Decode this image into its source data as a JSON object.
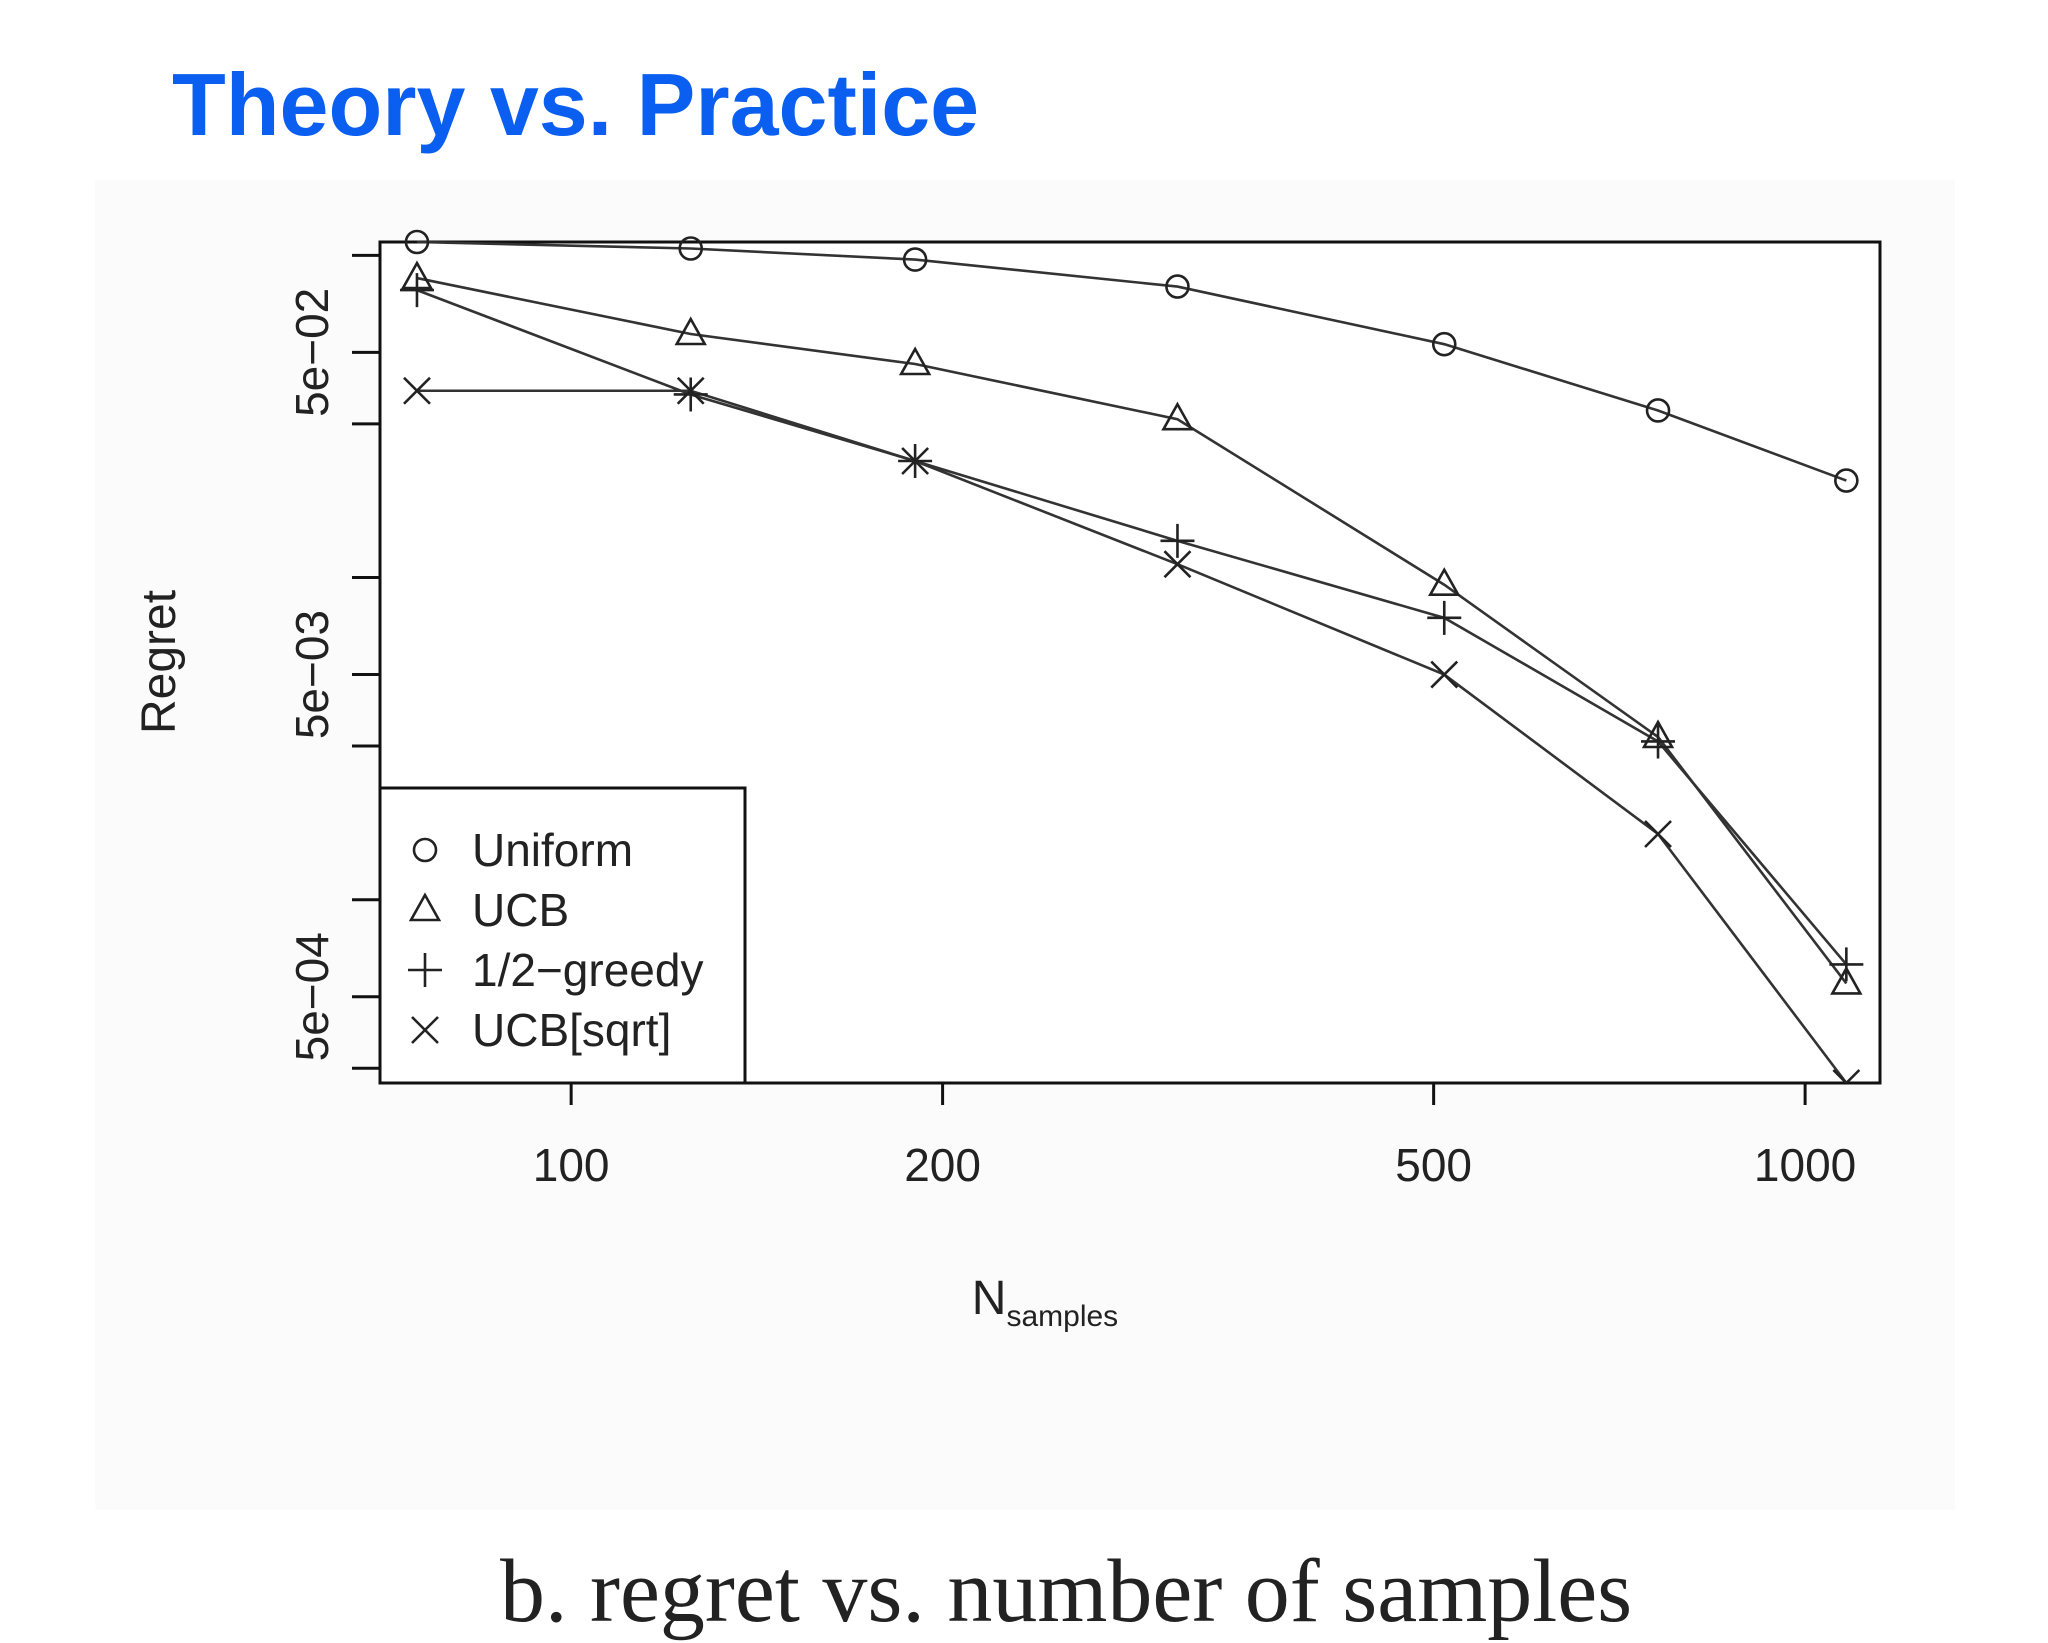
{
  "slide": {
    "title": "Theory vs. Practice",
    "title_color": "#0a5ef0",
    "caption": "b. regret vs. number of samples"
  },
  "chart_data": {
    "type": "line",
    "xlabel": "N",
    "xlabel_subscript": "samples",
    "ylabel": "Regret",
    "x_scale": "log",
    "y_scale": "log",
    "xlim": [
      70,
      1150
    ],
    "ylim": [
      0.00027,
      0.11
    ],
    "x_ticks": [
      100,
      200,
      500,
      1000
    ],
    "x_tick_labels": [
      "100",
      "200",
      "500",
      "1000"
    ],
    "y_ticks": [
      0.0003,
      0.0005,
      0.001,
      0.003,
      0.005,
      0.01,
      0.03,
      0.05,
      0.1
    ],
    "y_tick_labels": [
      {
        "value": 0.0005,
        "label": "5e−04"
      },
      {
        "value": 0.005,
        "label": "5e−03"
      },
      {
        "value": 0.05,
        "label": "5e−02"
      }
    ],
    "grid": false,
    "legend_position": "bottom-left",
    "line_color": "#333333",
    "series": [
      {
        "name": "Uniform",
        "marker": "circle",
        "x": [
          75,
          125,
          190,
          310,
          510,
          760,
          1080
        ],
        "y": [
          0.11,
          0.105,
          0.097,
          0.08,
          0.053,
          0.033,
          0.02
        ]
      },
      {
        "name": "UCB",
        "marker": "triangle",
        "x": [
          75,
          125,
          190,
          310,
          510,
          760,
          1080
        ],
        "y": [
          0.085,
          0.057,
          0.046,
          0.031,
          0.0095,
          0.0032,
          0.00055
        ]
      },
      {
        "name": "1/2−greedy",
        "marker": "plus",
        "x": [
          75,
          125,
          190,
          310,
          510,
          760,
          1080
        ],
        "y": [
          0.078,
          0.037,
          0.023,
          0.013,
          0.0075,
          0.0031,
          0.00063
        ]
      },
      {
        "name": "UCB[sqrt]",
        "marker": "cross",
        "x": [
          75,
          125,
          190,
          310,
          510,
          760,
          1080
        ],
        "y": [
          0.038,
          0.038,
          0.023,
          0.011,
          0.005,
          0.0016,
          0.00027
        ]
      }
    ]
  }
}
